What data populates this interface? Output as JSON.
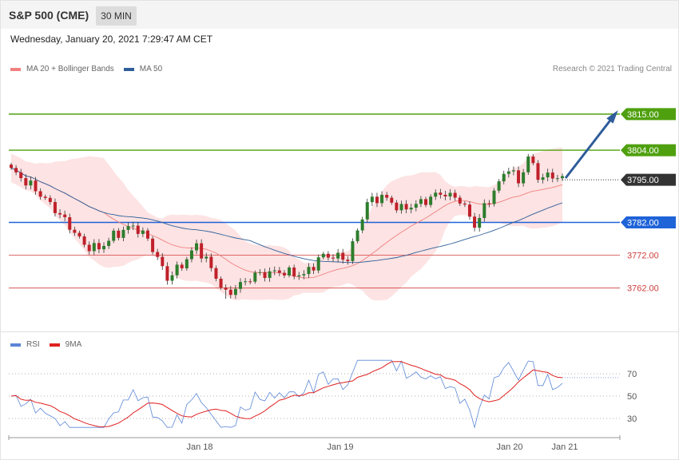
{
  "header": {
    "title": "S&P 500 (CME)",
    "interval": "30 MIN",
    "datetime": "Wednesday, January 20, 2021 7:29:47 AM CET"
  },
  "legend_main": [
    {
      "label": "MA 20 + Bollinger Bands",
      "color": "#f08080"
    },
    {
      "label": "MA 50",
      "color": "#2f5f9a"
    }
  ],
  "legend_rsi": [
    {
      "label": "RSI",
      "color": "#5b86d6"
    },
    {
      "label": "9MA",
      "color": "#e02020"
    }
  ],
  "copyright": "Research © 2021 Trading Central",
  "colors": {
    "up": "#2d7d2d",
    "down": "#c0202a",
    "resistance": "#4fa00e",
    "pivot": "#1f63d8",
    "support": "#d13d3d",
    "last": "#333333",
    "arrow": "#2f5c9a"
  },
  "chart_data": [
    {
      "type": "candlestick",
      "ylim": [
        3750,
        3823
      ],
      "last_price": "3795.00",
      "levels": [
        {
          "value": 3815.0,
          "label": "3815.00",
          "kind": "resistance"
        },
        {
          "value": 3804.0,
          "label": "3804.00",
          "kind": "resistance"
        },
        {
          "value": 3782.0,
          "label": "3782.00",
          "kind": "pivot"
        },
        {
          "value": 3772.0,
          "label": "3772.00",
          "kind": "support"
        },
        {
          "value": 3762.0,
          "label": "3762.00",
          "kind": "support"
        }
      ],
      "projection": {
        "from": [
          3795.5
        ],
        "to": [
          3815
        ]
      },
      "x_ticks": [
        "Jan 18",
        "Jan 19",
        "Jan 20",
        "Jan 21"
      ]
    },
    {
      "type": "line",
      "series_names": [
        "RSI",
        "9MA"
      ],
      "ylim": [
        15,
        90
      ],
      "y_ticks": [
        70,
        50,
        30
      ]
    }
  ]
}
